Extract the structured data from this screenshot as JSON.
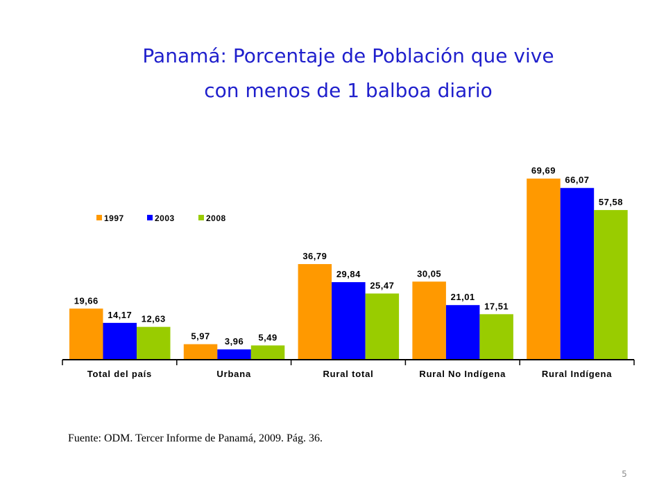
{
  "slide": {
    "title_line1": "Panamá: Porcentaje de Población que vive",
    "title_line2": "con menos de 1 balboa diario",
    "source": "Fuente: ODM. Tercer Informe de Panamá, 2009. Pág. 36.",
    "page_number": "5"
  },
  "chart_data": {
    "type": "bar",
    "categories": [
      "Total del país",
      "Urbana",
      "Rural total",
      "Rural No Indígena",
      "Rural Indígena"
    ],
    "series": [
      {
        "name": "1997",
        "color": "#ff9900",
        "values": [
          19.66,
          5.97,
          36.79,
          30.05,
          69.69
        ],
        "labels": [
          "19,66",
          "5,97",
          "36,79",
          "30,05",
          "69,69"
        ]
      },
      {
        "name": "2003",
        "color": "#0000ff",
        "values": [
          14.17,
          3.96,
          29.84,
          21.01,
          66.07
        ],
        "labels": [
          "14,17",
          "3,96",
          "29,84",
          "21,01",
          "66,07"
        ]
      },
      {
        "name": "2008",
        "color": "#99cc00",
        "values": [
          12.63,
          5.49,
          25.47,
          17.51,
          57.58
        ],
        "labels": [
          "12,63",
          "5,49",
          "25,47",
          "17,51",
          "57,58"
        ]
      }
    ],
    "ylim": [
      0,
      70
    ],
    "legend": "top-left",
    "grid": false,
    "xlabel": "",
    "ylabel": ""
  }
}
